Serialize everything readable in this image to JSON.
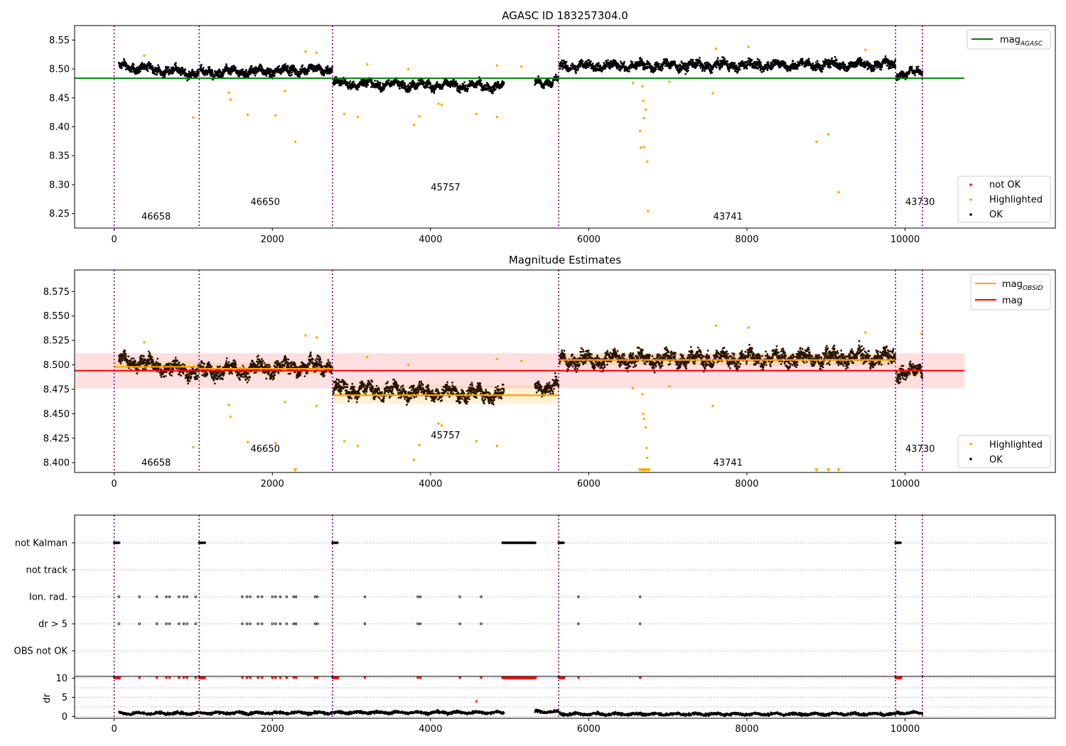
{
  "chart_data": [
    {
      "type": "scatter",
      "title": "AGASC ID 183257304.0",
      "xlabel": "",
      "ylabel": "",
      "xlim": [
        -500,
        11900
      ],
      "ylim": [
        8.225,
        8.575
      ],
      "xticks": [
        0,
        2000,
        4000,
        6000,
        8000,
        10000
      ],
      "yticks": [
        8.25,
        8.3,
        8.35,
        8.4,
        8.45,
        8.5,
        8.55
      ],
      "obsid_boundaries": [
        0,
        1075,
        2760,
        5620,
        9880,
        10220
      ],
      "obsid_labels": [
        {
          "label": "46658",
          "x": 530,
          "y": 8.24
        },
        {
          "label": "46650",
          "x": 1910,
          "y": 8.265
        },
        {
          "label": "45757",
          "x": 4190,
          "y": 8.29
        },
        {
          "label": "43741",
          "x": 7760,
          "y": 8.24
        },
        {
          "label": "43730",
          "x": 10190,
          "y": 8.265
        }
      ],
      "reference_lines": [
        {
          "name": "mag",
          "subscript": "AGASC",
          "y": 8.484,
          "x": [
            -500,
            10750
          ],
          "color": "#008000"
        }
      ],
      "legend_top": [
        {
          "name": "mag",
          "subscript": "AGASC",
          "color": "#008000",
          "kind": "line"
        }
      ],
      "legend_bottom": [
        {
          "name": "not OK",
          "color": "#ff0000",
          "kind": "dot"
        },
        {
          "name": "Highlighted",
          "color": "#ffa500",
          "kind": "dot"
        },
        {
          "name": "OK",
          "color": "#000000",
          "kind": "dot"
        }
      ],
      "ok_segments": [
        {
          "x": [
            60,
            1075
          ],
          "start": 8.505,
          "end": 8.492,
          "spread": 0.012
        },
        {
          "x": [
            1090,
            2760
          ],
          "start": 8.493,
          "end": 8.5,
          "spread": 0.013
        },
        {
          "x": [
            2770,
            4930
          ],
          "start": 8.475,
          "end": 8.47,
          "spread": 0.012
        },
        {
          "x": [
            5320,
            5620
          ],
          "start": 8.478,
          "end": 8.478,
          "spread": 0.012
        },
        {
          "x": [
            5630,
            9880
          ],
          "start": 8.505,
          "end": 8.508,
          "spread": 0.013
        },
        {
          "x": [
            9890,
            10220
          ],
          "start": 8.492,
          "end": 8.494,
          "spread": 0.011
        }
      ],
      "highlighted_points": [
        {
          "x": 380,
          "y": 8.523
        },
        {
          "x": 1000,
          "y": 8.416
        },
        {
          "x": 1450,
          "y": 8.459
        },
        {
          "x": 1470,
          "y": 8.447
        },
        {
          "x": 1690,
          "y": 8.421
        },
        {
          "x": 2040,
          "y": 8.42
        },
        {
          "x": 2160,
          "y": 8.462
        },
        {
          "x": 2290,
          "y": 8.374
        },
        {
          "x": 2420,
          "y": 8.53
        },
        {
          "x": 2560,
          "y": 8.528
        },
        {
          "x": 2910,
          "y": 8.422
        },
        {
          "x": 3080,
          "y": 8.417
        },
        {
          "x": 3200,
          "y": 8.508
        },
        {
          "x": 3720,
          "y": 8.5
        },
        {
          "x": 3790,
          "y": 8.403
        },
        {
          "x": 3860,
          "y": 8.418
        },
        {
          "x": 4100,
          "y": 8.44
        },
        {
          "x": 4140,
          "y": 8.438
        },
        {
          "x": 4580,
          "y": 8.422
        },
        {
          "x": 4840,
          "y": 8.417
        },
        {
          "x": 4840,
          "y": 8.506
        },
        {
          "x": 5150,
          "y": 8.504
        },
        {
          "x": 6560,
          "y": 8.476
        },
        {
          "x": 6650,
          "y": 8.393
        },
        {
          "x": 6660,
          "y": 8.364
        },
        {
          "x": 6680,
          "y": 8.47
        },
        {
          "x": 6690,
          "y": 8.445
        },
        {
          "x": 6700,
          "y": 8.415
        },
        {
          "x": 6720,
          "y": 8.43
        },
        {
          "x": 6740,
          "y": 8.34
        },
        {
          "x": 6750,
          "y": 8.254
        },
        {
          "x": 6700,
          "y": 8.365
        },
        {
          "x": 7020,
          "y": 8.478
        },
        {
          "x": 7570,
          "y": 8.458
        },
        {
          "x": 7610,
          "y": 8.535
        },
        {
          "x": 8020,
          "y": 8.538
        },
        {
          "x": 8880,
          "y": 8.374
        },
        {
          "x": 9030,
          "y": 8.387
        },
        {
          "x": 9160,
          "y": 8.287
        },
        {
          "x": 9500,
          "y": 8.533
        },
        {
          "x": 10210,
          "y": 8.532
        }
      ]
    },
    {
      "type": "scatter",
      "title": "Magnitude Estimates",
      "xlabel": "",
      "ylabel": "",
      "xlim": [
        -500,
        11900
      ],
      "ylim": [
        8.39,
        8.597
      ],
      "xticks": [
        0,
        2000,
        4000,
        6000,
        8000,
        10000
      ],
      "yticks": [
        8.4,
        8.425,
        8.45,
        8.475,
        8.5,
        8.525,
        8.55,
        8.575
      ],
      "obsid_boundaries": [
        0,
        1075,
        2760,
        5620,
        9880,
        10220
      ],
      "obsid_labels": [
        {
          "label": "46658",
          "x": 530,
          "y": 8.397
        },
        {
          "label": "46650",
          "x": 1910,
          "y": 8.411
        },
        {
          "label": "45757",
          "x": 4190,
          "y": 8.425
        },
        {
          "label": "43741",
          "x": 7760,
          "y": 8.397
        },
        {
          "label": "43730",
          "x": 10190,
          "y": 8.411
        }
      ],
      "mag": {
        "name": "mag",
        "value": 8.494,
        "band": [
          8.476,
          8.512
        ],
        "x": [
          -500,
          10750
        ],
        "color": "#ff0000"
      },
      "mag_obsid": [
        {
          "x": [
            0,
            1075
          ],
          "value": 8.498,
          "band": [
            8.492,
            8.504
          ]
        },
        {
          "x": [
            1075,
            2760
          ],
          "value": 8.496,
          "band": [
            8.49,
            8.502
          ]
        },
        {
          "x": [
            2760,
            5620
          ],
          "value": 8.469,
          "band": [
            8.46,
            8.479
          ]
        },
        {
          "x": [
            5620,
            9880
          ],
          "value": 8.505,
          "band": [
            8.499,
            8.511
          ]
        },
        {
          "x": [
            9880,
            10220
          ],
          "value": 8.494,
          "band": [
            8.488,
            8.5
          ]
        }
      ],
      "legend_top": [
        {
          "name": "mag",
          "subscript": "OBSID",
          "color": "#ffa500",
          "kind": "line"
        },
        {
          "name": "mag",
          "subscript": "",
          "color": "#ff0000",
          "kind": "line"
        }
      ],
      "legend_bottom": [
        {
          "name": "Highlighted",
          "color": "#ffa500",
          "kind": "dot"
        },
        {
          "name": "OK",
          "color": "#000000",
          "kind": "dot"
        }
      ],
      "ok_segments": [
        {
          "x": [
            60,
            1075
          ],
          "start": 8.505,
          "end": 8.492,
          "spread": 0.012
        },
        {
          "x": [
            1090,
            2760
          ],
          "start": 8.493,
          "end": 8.5,
          "spread": 0.013
        },
        {
          "x": [
            2770,
            4930
          ],
          "start": 8.475,
          "end": 8.47,
          "spread": 0.012
        },
        {
          "x": [
            5320,
            5620
          ],
          "start": 8.478,
          "end": 8.478,
          "spread": 0.012
        },
        {
          "x": [
            5630,
            9880
          ],
          "start": 8.505,
          "end": 8.508,
          "spread": 0.013
        },
        {
          "x": [
            9890,
            10220
          ],
          "start": 8.492,
          "end": 8.494,
          "spread": 0.011
        }
      ],
      "highlighted_points": [
        {
          "x": 380,
          "y": 8.523
        },
        {
          "x": 1000,
          "y": 8.416
        },
        {
          "x": 1450,
          "y": 8.459
        },
        {
          "x": 1470,
          "y": 8.447
        },
        {
          "x": 1690,
          "y": 8.421
        },
        {
          "x": 2040,
          "y": 8.42
        },
        {
          "x": 2160,
          "y": 8.462
        },
        {
          "x": 2420,
          "y": 8.53
        },
        {
          "x": 2560,
          "y": 8.528
        },
        {
          "x": 2560,
          "y": 8.458
        },
        {
          "x": 2910,
          "y": 8.422
        },
        {
          "x": 3080,
          "y": 8.417
        },
        {
          "x": 3200,
          "y": 8.508
        },
        {
          "x": 3720,
          "y": 8.5
        },
        {
          "x": 3790,
          "y": 8.403
        },
        {
          "x": 3860,
          "y": 8.418
        },
        {
          "x": 4100,
          "y": 8.44
        },
        {
          "x": 4140,
          "y": 8.438
        },
        {
          "x": 4580,
          "y": 8.422
        },
        {
          "x": 4840,
          "y": 8.417
        },
        {
          "x": 4840,
          "y": 8.506
        },
        {
          "x": 5150,
          "y": 8.504
        },
        {
          "x": 6560,
          "y": 8.476
        },
        {
          "x": 6680,
          "y": 8.47
        },
        {
          "x": 6690,
          "y": 8.45
        },
        {
          "x": 6700,
          "y": 8.445
        },
        {
          "x": 6720,
          "y": 8.436
        },
        {
          "x": 6730,
          "y": 8.415
        },
        {
          "x": 6740,
          "y": 8.405
        },
        {
          "x": 7020,
          "y": 8.478
        },
        {
          "x": 7570,
          "y": 8.458
        },
        {
          "x": 7610,
          "y": 8.54
        },
        {
          "x": 8020,
          "y": 8.538
        },
        {
          "x": 9500,
          "y": 8.533
        },
        {
          "x": 10210,
          "y": 8.532
        }
      ],
      "clipped_points": [
        {
          "x": 2290,
          "y": 8.392
        },
        {
          "x": 6650,
          "y": 8.392
        },
        {
          "x": 6680,
          "y": 8.392
        },
        {
          "x": 6700,
          "y": 8.392
        },
        {
          "x": 6730,
          "y": 8.392
        },
        {
          "x": 6760,
          "y": 8.392
        },
        {
          "x": 8880,
          "y": 8.392
        },
        {
          "x": 9030,
          "y": 8.392
        },
        {
          "x": 9160,
          "y": 8.392
        }
      ]
    },
    {
      "type": "scatter",
      "title": "",
      "xlabel": "",
      "ylabel": "",
      "xlim": [
        -500,
        11900
      ],
      "obsid_boundaries": [
        0,
        1075,
        2760,
        5620,
        9880,
        10220
      ],
      "flag_rows": [
        "not Kalman",
        "not track",
        "Ion. rad.",
        "dr > 5",
        "OBS not OK"
      ],
      "flags": {
        "not Kalman": [
          [
            0,
            70
          ],
          [
            1075,
            1150
          ],
          [
            2760,
            2830
          ],
          [
            4910,
            5330
          ],
          [
            5620,
            5690
          ],
          [
            9880,
            9950
          ]
        ],
        "not track": [],
        "Ion. rad.": [
          60,
          320,
          540,
          660,
          700,
          820,
          880,
          920,
          1030,
          1620,
          1680,
          1720,
          1820,
          1870,
          2000,
          2040,
          2100,
          2180,
          2270,
          2300,
          2540,
          2570,
          3170,
          3840,
          3870,
          4370,
          4640,
          5870,
          6650
        ],
        "dr > 5": [
          60,
          320,
          540,
          660,
          700,
          820,
          880,
          920,
          1030,
          1620,
          1680,
          1720,
          1820,
          1870,
          2000,
          2040,
          2100,
          2180,
          2270,
          2300,
          2540,
          2570,
          3170,
          3840,
          3870,
          4370,
          4640,
          5870,
          6650
        ],
        "OBS not OK": []
      }
    },
    {
      "type": "scatter",
      "title": "",
      "xlabel": "",
      "ylabel": "dr",
      "xlim": [
        -500,
        11900
      ],
      "ylim": [
        -0.5,
        10.5
      ],
      "yticks": [
        0,
        5,
        10
      ],
      "obsid_boundaries": [
        0,
        1075,
        2760,
        5620,
        9880,
        10220
      ],
      "capped_value": 10,
      "dr_segments": [
        {
          "x": [
            60,
            1075
          ],
          "mean": 0.8
        },
        {
          "x": [
            1090,
            2760
          ],
          "mean": 0.9
        },
        {
          "x": [
            2770,
            4930
          ],
          "mean": 1.0
        },
        {
          "x": [
            5320,
            5620
          ],
          "mean": 1.2
        },
        {
          "x": [
            5630,
            9880
          ],
          "mean": 0.6
        },
        {
          "x": [
            9890,
            10220
          ],
          "mean": 0.9
        }
      ],
      "dr_capped_clusters": [
        [
          0,
          70
        ],
        [
          1075,
          1150
        ],
        [
          2760,
          2830
        ],
        [
          4910,
          5330
        ],
        [
          5620,
          5690
        ],
        [
          9880,
          9950
        ]
      ],
      "dr_capped_points": [
        60,
        320,
        540,
        660,
        700,
        820,
        880,
        920,
        1030,
        1620,
        1680,
        1720,
        1820,
        1870,
        2000,
        2040,
        2100,
        2180,
        2270,
        2300,
        2540,
        2570,
        3170,
        3840,
        3870,
        4370,
        4640,
        5870,
        6650
      ],
      "dr_outliers": [
        {
          "x": 4580,
          "y": 3.8
        }
      ]
    }
  ]
}
